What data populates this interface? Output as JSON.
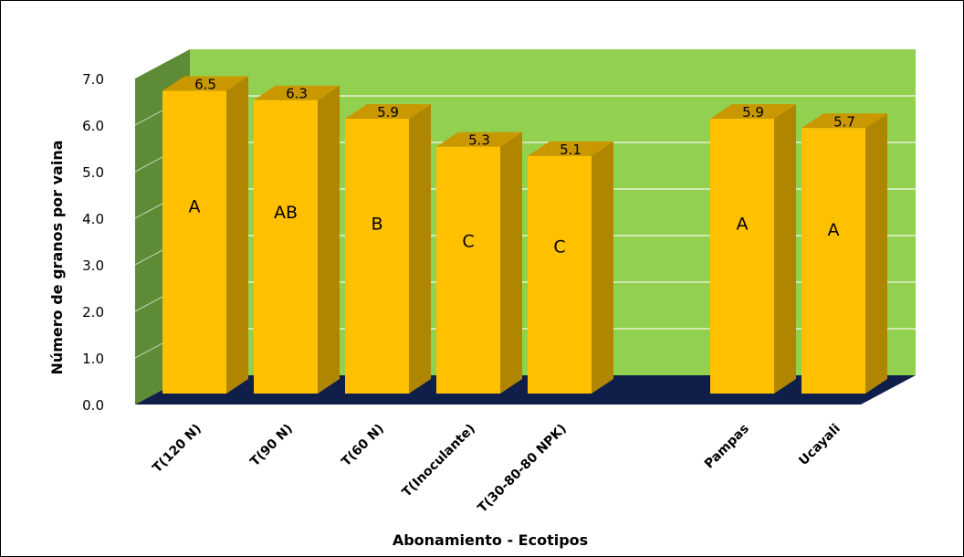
{
  "chart_data": {
    "type": "bar",
    "categories": [
      "T(120 N)",
      "T(90 N)",
      "T(60 N)",
      "T(Inoculante)",
      "T(30-80-80 NPK)",
      "Pampas",
      "Ucayali"
    ],
    "values": [
      6.5,
      6.3,
      5.9,
      5.3,
      5.1,
      5.9,
      5.7
    ],
    "value_labels": [
      "6.5",
      "6.3",
      "5.9",
      "5.3",
      "5.1",
      "5.9",
      "5.7"
    ],
    "significance_letters": [
      "A",
      "AB",
      "B",
      "C",
      "C",
      "A",
      "A"
    ],
    "xlabel": "Abonamiento - Ecotipos",
    "ylabel": "Número de granos por vaina",
    "ylim": [
      0,
      7
    ],
    "yticks": [
      "0.0",
      "1.0",
      "2.0",
      "3.0",
      "4.0",
      "5.0",
      "6.0",
      "7.0"
    ],
    "grid": true,
    "style": "3d",
    "colors": {
      "bar_front": "#FFC000",
      "bar_top": "#C99700",
      "bar_side": "#B08600",
      "back_wall": "#92D050",
      "side_wall": "#5E8B36",
      "floor": "#0F1F4A"
    }
  }
}
